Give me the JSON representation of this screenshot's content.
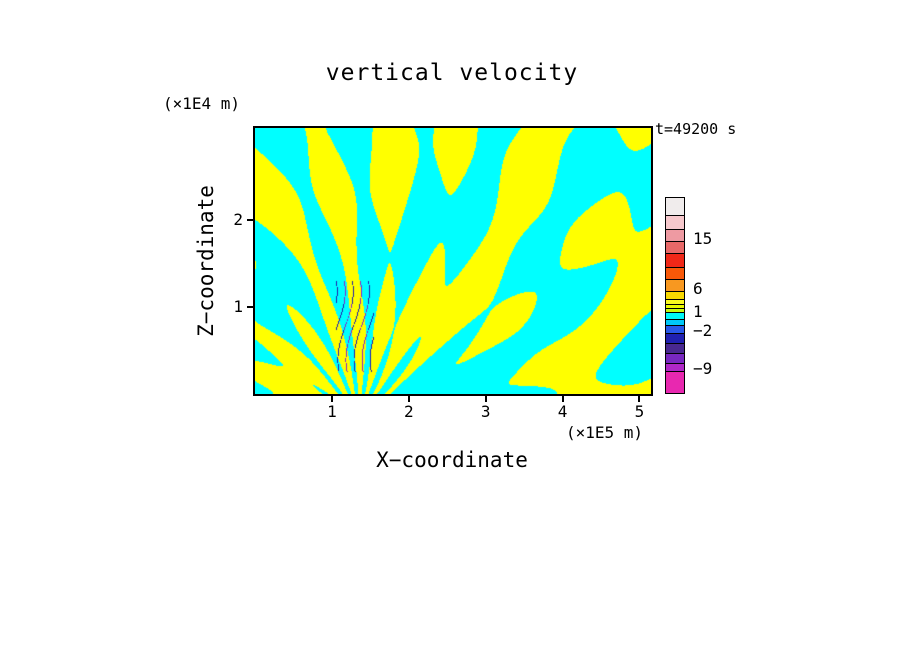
{
  "chart_data": {
    "type": "heatmap",
    "title": "vertical velocity",
    "time_annotation": "t=49200 s",
    "xlabel": "X−coordinate",
    "ylabel": "Z−coordinate",
    "x_units": "(×1E5 m)",
    "y_units": "(×1E4 m)",
    "x_range": [
      0,
      5.15
    ],
    "y_range": [
      0,
      3.05
    ],
    "x_ticks": [
      {
        "value": 1,
        "label": "1"
      },
      {
        "value": 2,
        "label": "2"
      },
      {
        "value": 3,
        "label": "3"
      },
      {
        "value": 4,
        "label": "4"
      },
      {
        "value": 5,
        "label": "5"
      }
    ],
    "y_ticks": [
      {
        "value": 1,
        "label": "1"
      },
      {
        "value": 2,
        "label": "2"
      }
    ],
    "field_name": "vertical velocity",
    "legend_position": "right",
    "grid": false,
    "palette": {
      "positive": "#ffff00",
      "negative": "#00ffff",
      "strong_negative_1": "#2020b0",
      "strong_negative_2": "#8828c8"
    },
    "colorbar": {
      "segments": [
        {
          "color": "#f0ecec",
          "h": 18
        },
        {
          "color": "#f6c8cc",
          "h": 14
        },
        {
          "color": "#ee9aa2",
          "h": 12
        },
        {
          "color": "#e86868",
          "h": 12
        },
        {
          "color": "#f02818",
          "h": 14
        },
        {
          "color": "#f85808",
          "h": 12
        },
        {
          "color": "#f89820",
          "h": 12
        },
        {
          "color": "#f8d800",
          "h": 8
        },
        {
          "color": "#f8f820",
          "h": 5
        },
        {
          "color": "#e8f800",
          "h": 4
        },
        {
          "color": "#c8f810",
          "h": 4
        },
        {
          "color": "#00f8f8",
          "h": 7
        },
        {
          "color": "#00c8f8",
          "h": 6
        },
        {
          "color": "#2858e8",
          "h": 8
        },
        {
          "color": "#2020b0",
          "h": 10
        },
        {
          "color": "#482890",
          "h": 10
        },
        {
          "color": "#7828c0",
          "h": 10
        },
        {
          "color": "#b028c8",
          "h": 8
        },
        {
          "color": "#e828b0",
          "h": 21
        }
      ],
      "tick_labels": [
        {
          "text": "15",
          "offset": 41
        },
        {
          "text": "6",
          "offset": 91
        },
        {
          "text": "1",
          "offset": 114
        },
        {
          "text": "−2",
          "offset": 133
        },
        {
          "text": "−9",
          "offset": 171
        }
      ]
    },
    "wave_model": {
      "source_x": 1.35,
      "source_z": 0.3,
      "fan_waves": 22,
      "radial_k": 1.6,
      "fan_amp": 0.95,
      "bg1": {
        "amp": 0.75,
        "kx": 2.1,
        "kz": -2.6,
        "mod_amp": 1.2,
        "mod_kx": 1.3,
        "mod_kz": 0.9
      },
      "bg2": {
        "amp": 0.55,
        "kz": 3.4,
        "mod_amp": 2.0,
        "mod_kx": 1.7
      },
      "streak_region": {
        "x_min": 1.05,
        "x_max": 1.55,
        "z_min": 0.25,
        "z_max": 1.3,
        "freq": 60,
        "wiggle": 6,
        "wiggle_k": 4,
        "threshold": 0.93
      }
    }
  }
}
